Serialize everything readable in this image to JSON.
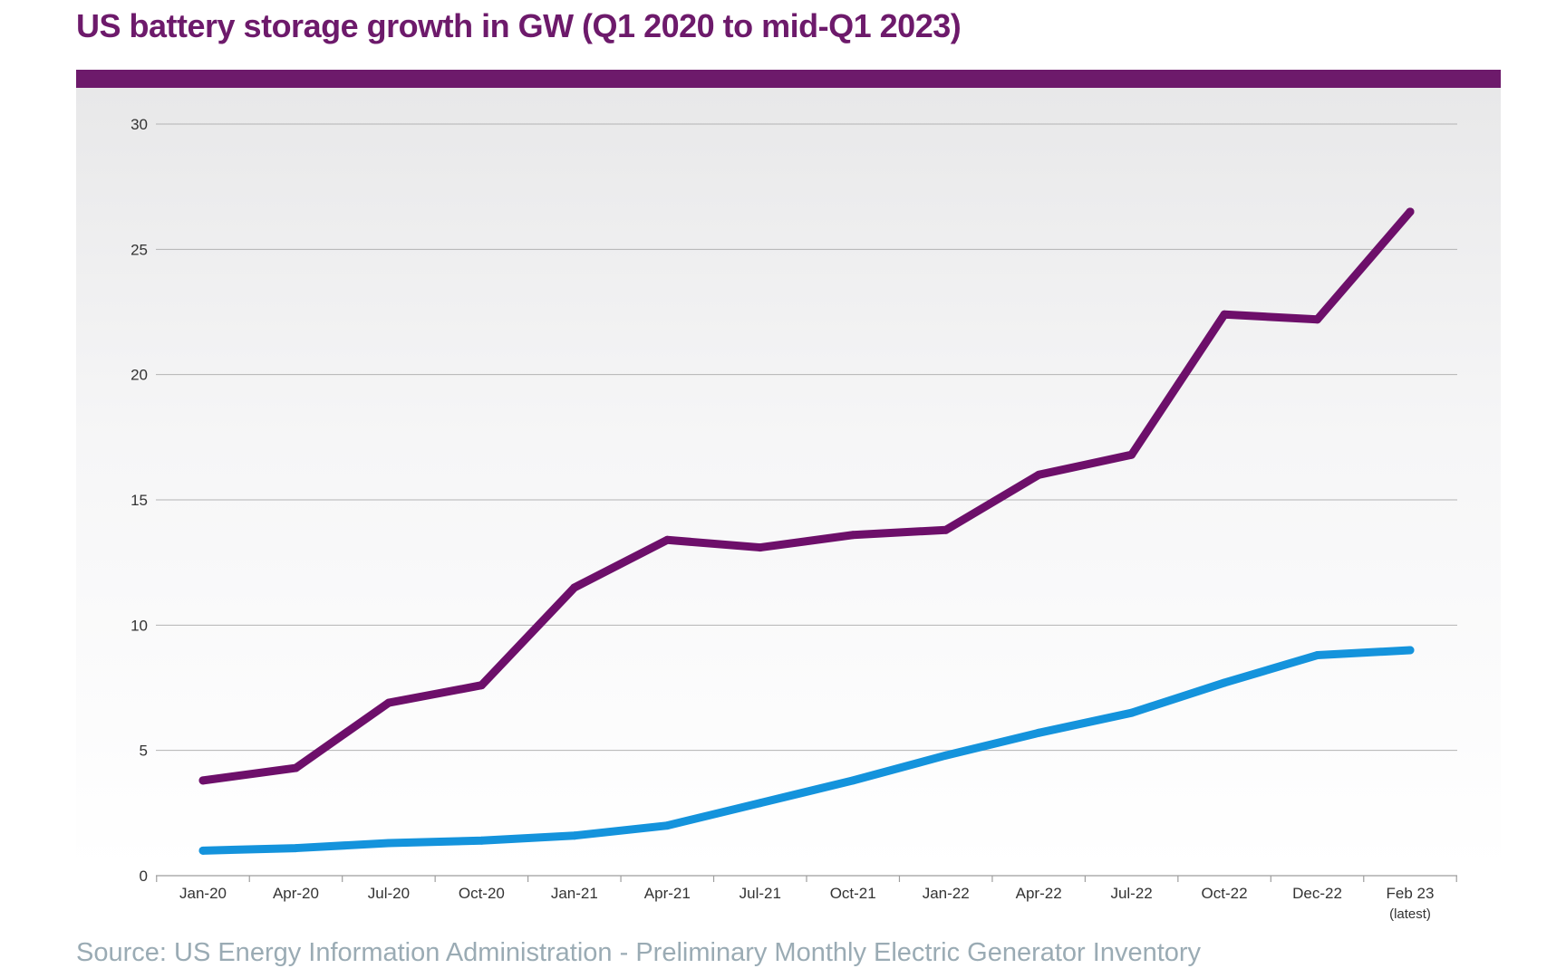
{
  "title": "US battery storage growth in GW (Q1 2020 to mid-Q1 2023)",
  "source": "Source: US Energy Information Administration - Preliminary Monthly Electric Generator Inventory",
  "colors": {
    "title": "#6d1a6b",
    "header_bar": "#6d1a6b",
    "series_purple": "#6d0f6a",
    "series_blue": "#1493dc",
    "gridline": "#b3b3b3",
    "tick_text": "#333333",
    "source_text": "#9aabb4"
  },
  "chart_data": {
    "type": "line",
    "title": "US battery storage growth in GW (Q1 2020 to mid-Q1 2023)",
    "xlabel": "",
    "ylabel": "",
    "categories": [
      "Jan-20",
      "Apr-20",
      "Jul-20",
      "Oct-20",
      "Jan-21",
      "Apr-21",
      "Jul-21",
      "Oct-21",
      "Jan-22",
      "Apr-22",
      "Jul-22",
      "Oct-22",
      "Dec-22",
      "Feb 23"
    ],
    "category_sublabels": [
      "",
      "",
      "",
      "",
      "",
      "",
      "",
      "",
      "",
      "",
      "",
      "",
      "",
      "(latest)"
    ],
    "ylim": [
      0,
      30
    ],
    "yticks": [
      0,
      5,
      10,
      15,
      20,
      25,
      30
    ],
    "grid": true,
    "legend": "none",
    "series": [
      {
        "values": [
          3.8,
          4.3,
          6.9,
          7.6,
          11.5,
          13.4,
          13.1,
          13.6,
          13.8,
          16.0,
          16.8,
          22.4,
          22.2,
          26.5
        ]
      },
      {
        "values": [
          1.0,
          1.1,
          1.3,
          1.4,
          1.6,
          2.0,
          2.9,
          3.8,
          4.8,
          5.7,
          6.5,
          7.7,
          8.8,
          9.0
        ]
      }
    ]
  }
}
